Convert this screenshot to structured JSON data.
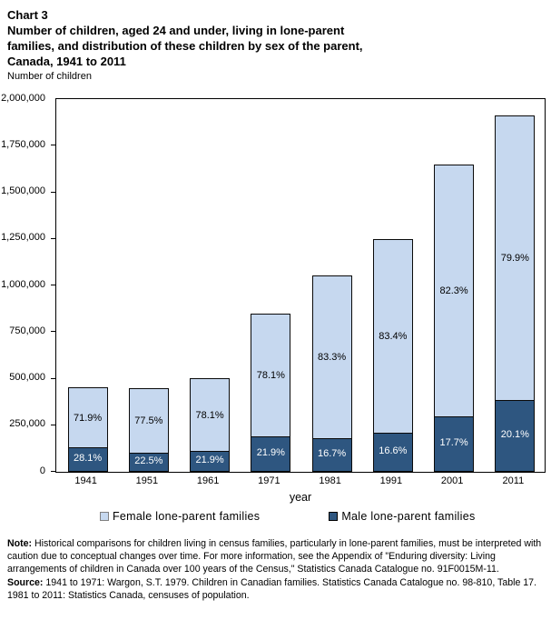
{
  "header": {
    "lines": [
      "Chart 3",
      "Number of children, aged 24 and under, living in lone-parent",
      "families, and distribution of these children by sex of the parent,",
      "Canada, 1941 to 2011"
    ]
  },
  "chart_data": {
    "type": "bar",
    "stacked": true,
    "title": "Number of children, aged 24 and under, living in lone-parent families, and distribution of these children by sex of the parent, Canada, 1941 to 2011",
    "ylabel": "Number of children",
    "xlabel": "year",
    "categories": [
      "1941",
      "1951",
      "1961",
      "1971",
      "1981",
      "1991",
      "2001",
      "2011"
    ],
    "totals_estimated": [
      445000,
      440000,
      495000,
      840000,
      1045000,
      1240000,
      1640000,
      1900000
    ],
    "series": [
      {
        "name": "Female lone-parent families",
        "pct": [
          71.9,
          77.5,
          78.1,
          78.1,
          83.3,
          83.4,
          82.3,
          79.9
        ],
        "values_estimated": [
          320000,
          341000,
          387000,
          656000,
          870000,
          1034000,
          1350000,
          1518000
        ],
        "color": "#C6D8EF",
        "label_color": "#000000"
      },
      {
        "name": "Male lone-parent families",
        "pct": [
          28.1,
          22.5,
          21.9,
          21.9,
          16.7,
          16.6,
          17.7,
          20.1
        ],
        "values_estimated": [
          125000,
          99000,
          108000,
          184000,
          175000,
          206000,
          290000,
          382000
        ],
        "color": "#2E5680",
        "label_color": "#FFFFFF"
      }
    ],
    "ylim": [
      0,
      2000000
    ],
    "ytick_step": 250000,
    "grid": false,
    "legend_position": "bottom",
    "legend": [
      {
        "label": "Female lone-parent families",
        "color": "#C6D8EF",
        "border": "#808080"
      },
      {
        "label": "Male lone-parent families",
        "color": "#2E5680",
        "border": "#000000"
      }
    ]
  },
  "notes": {
    "note_label": "Note:",
    "note_text": " Historical comparisons for children living in census families, particularly in lone-parent families, must be interpreted with caution due to conceptual changes over time. For more information, see the Appendix of \"Enduring diversity: Living arrangements of children in Canada over 100 years of the Census,\" Statistics Canada Catalogue no. 91F0015M-11.",
    "source_label": "Source:",
    "source_text": " 1941 to 1971: Wargon, S.T. 1979. Children in Canadian families. Statistics Canada Catalogue no. 98-810, Table 17. 1981 to 2011: Statistics Canada, censuses of population."
  }
}
